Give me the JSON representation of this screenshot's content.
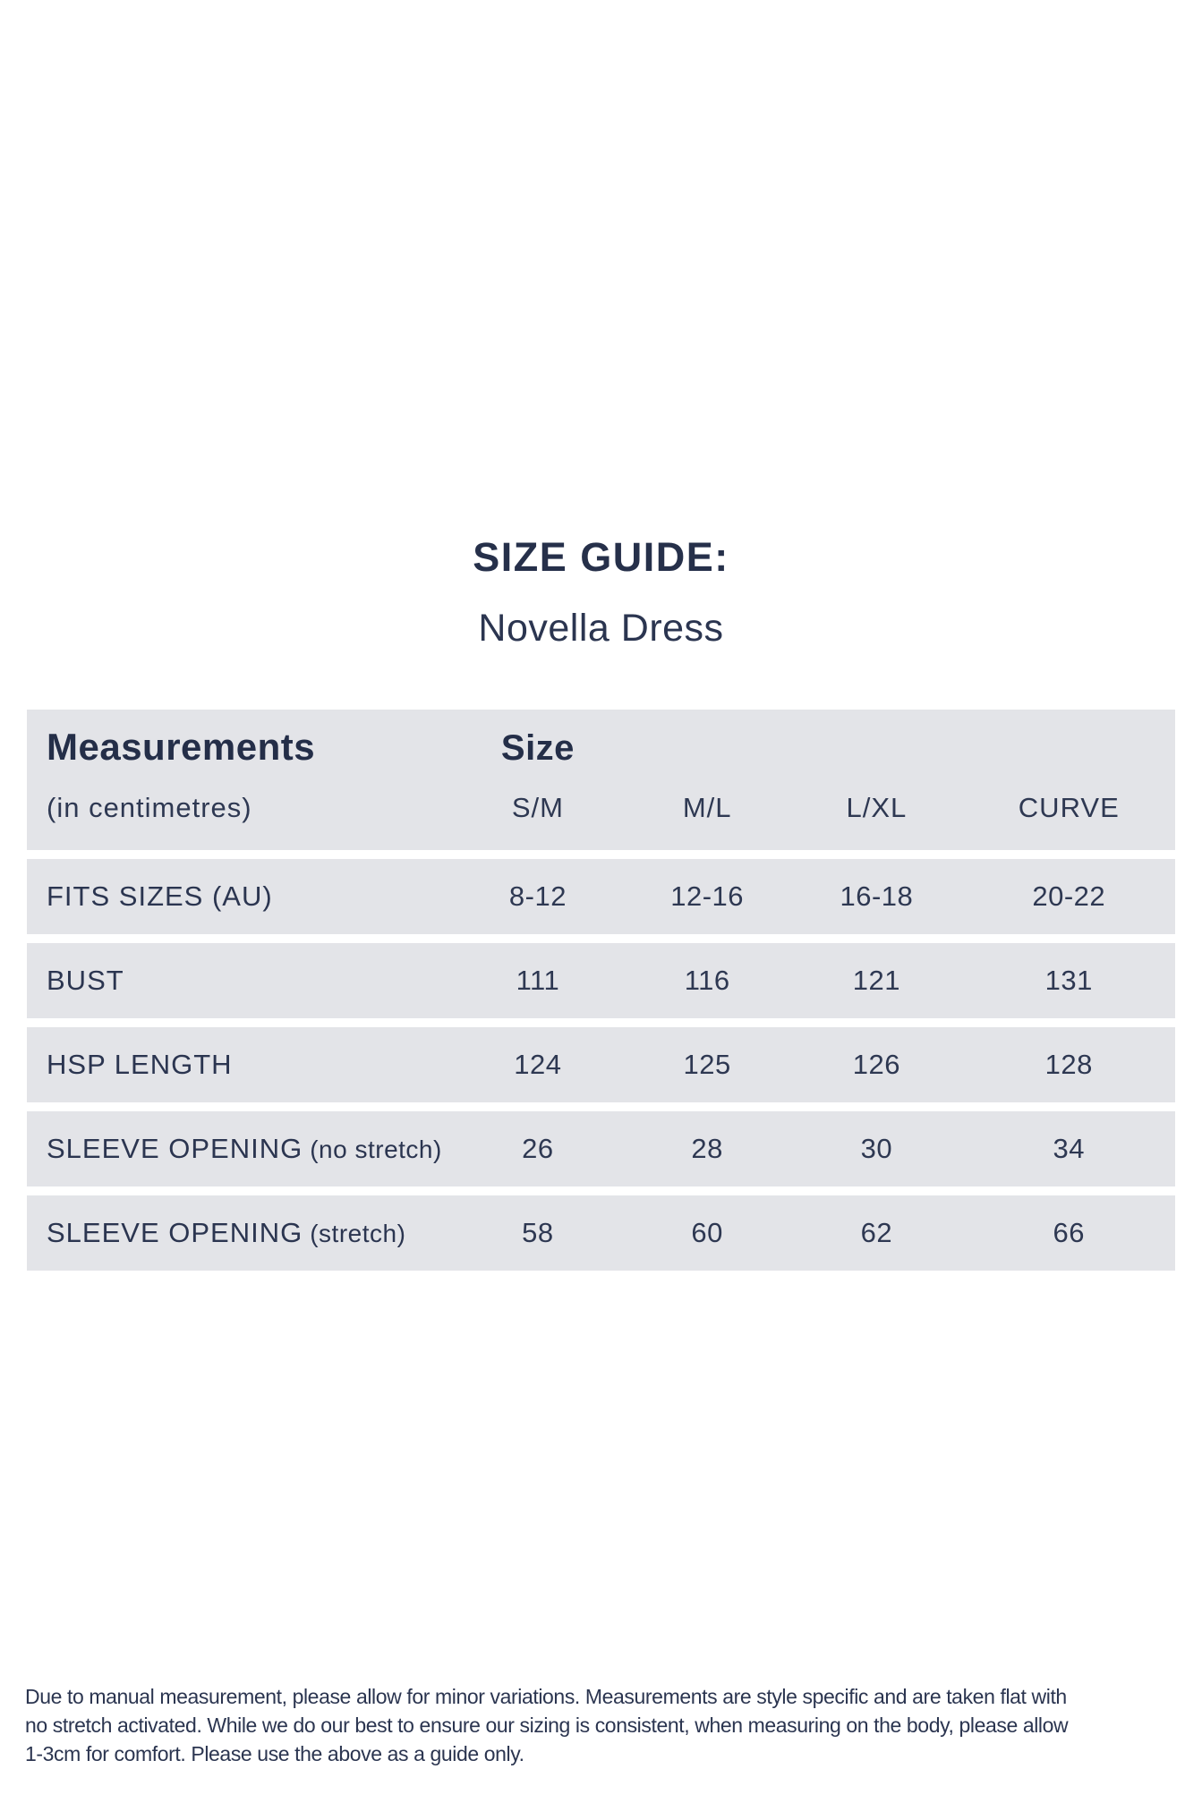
{
  "page": {
    "title": "SIZE GUIDE:",
    "subtitle": "Novella Dress"
  },
  "table": {
    "header": {
      "col1_title": "Measurements",
      "col1_sub": "(in centimetres)",
      "col2_title": "Size",
      "sizes": [
        "S/M",
        "M/L",
        "L/XL",
        "CURVE"
      ]
    },
    "rows": [
      {
        "label": "FITS SIZES (AU)",
        "suffix": "",
        "values": [
          "8-12",
          "12-16",
          "16-18",
          "20-22"
        ]
      },
      {
        "label": "BUST",
        "suffix": "",
        "values": [
          "111",
          "116",
          "121",
          "131"
        ]
      },
      {
        "label": "HSP LENGTH",
        "suffix": "",
        "values": [
          "124",
          "125",
          "126",
          "128"
        ]
      },
      {
        "label": "SLEEVE OPENING",
        "suffix": "(no stretch)",
        "values": [
          "26",
          "28",
          "30",
          "34"
        ]
      },
      {
        "label": "SLEEVE OPENING",
        "suffix": "(stretch)",
        "values": [
          "58",
          "60",
          "62",
          "66"
        ]
      }
    ]
  },
  "footer": {
    "lines": [
      "Due to manual measurement, please allow for minor variations. Measurements are style specific and are taken flat with",
      "no stretch activated. While we do our best to ensure our sizing is consistent, when measuring on the body, please allow",
      "1-3cm for comfort. Please use the above as a guide only."
    ]
  },
  "colors": {
    "text_navy": "#2b3550",
    "row_background": "#e3e4e8",
    "page_background": "#ffffff"
  }
}
